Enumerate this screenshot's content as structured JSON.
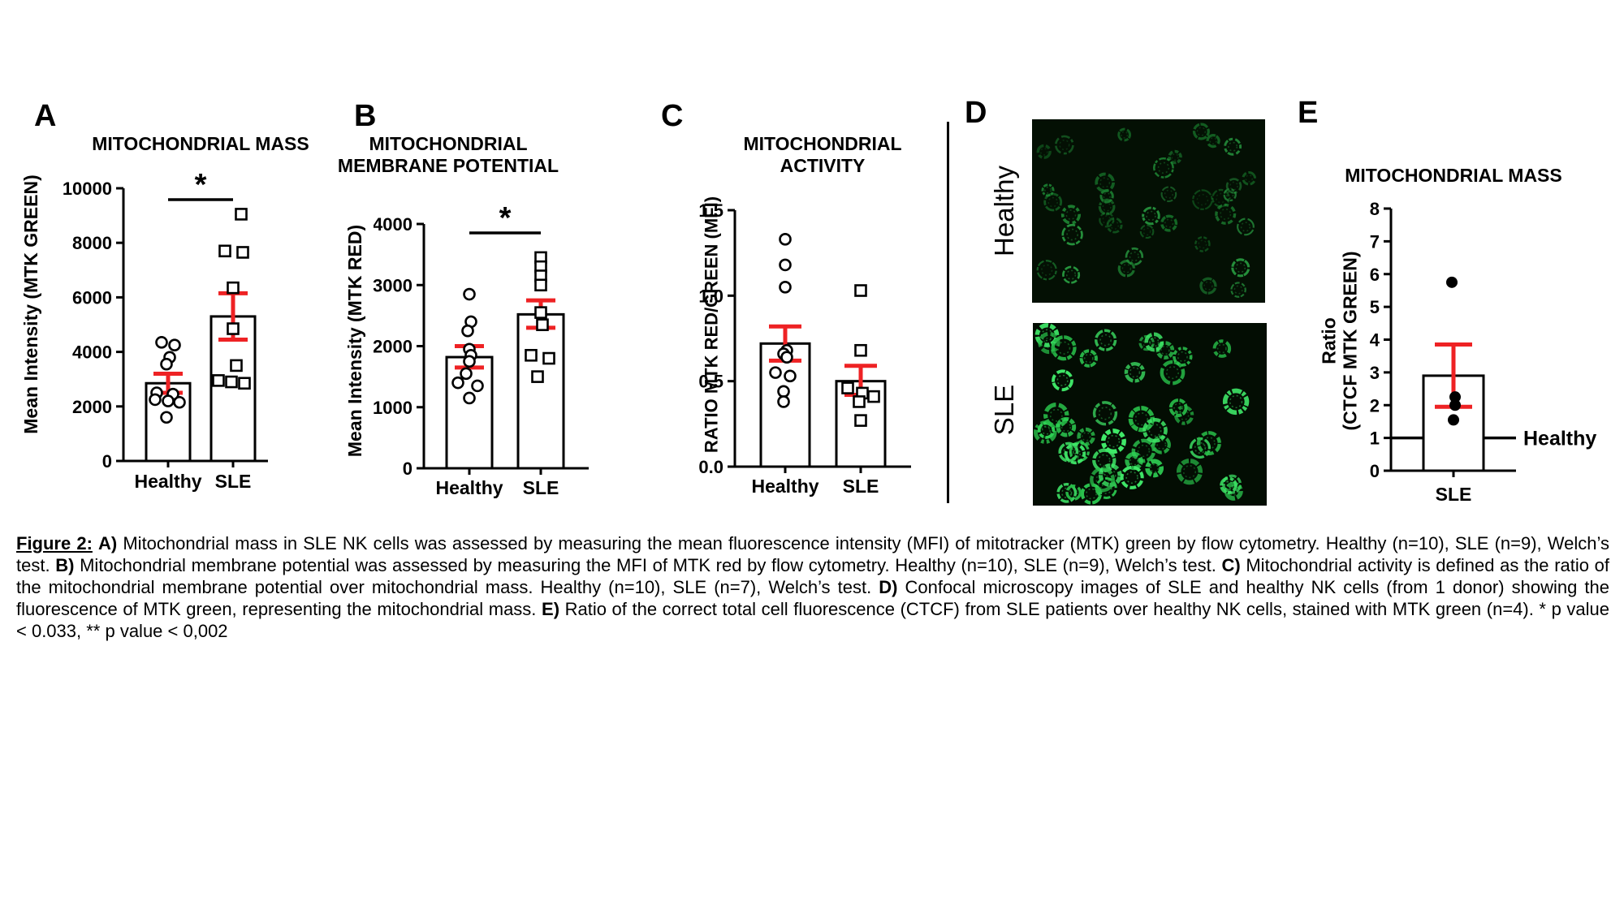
{
  "colors": {
    "error_bar_red": "#ee2224",
    "axis_ink": "#000000",
    "background": "#ffffff",
    "micro_green_dim": "#2aa344",
    "micro_green_bright": "#3fe868"
  },
  "chart_data": [
    {
      "id": "A",
      "panel_label": "A",
      "type": "bar",
      "title": "MITOCHONDRIAL MASS",
      "title_lines": [
        "MITOCHONDRIAL MASS"
      ],
      "ylabel": "Mean Intensity (MTK GREEN)",
      "xlabel": "",
      "categories": [
        "Healthy",
        "SLE"
      ],
      "ylim": [
        0,
        10000
      ],
      "yticks": [
        0,
        2000,
        4000,
        6000,
        8000,
        10000
      ],
      "ytick_labels": [
        "0",
        "2000",
        "4000",
        "6000",
        "8000",
        "10000"
      ],
      "significance": {
        "label": "*"
      },
      "series": [
        {
          "name": "Healthy",
          "marker": "open-circle",
          "mean": 2850,
          "sem_low": 2500,
          "sem_high": 3200,
          "points": [
            4350,
            4250,
            3800,
            3550,
            2500,
            2450,
            2250,
            2200,
            2150,
            1600
          ]
        },
        {
          "name": "SLE",
          "marker": "open-square",
          "mean": 5300,
          "sem_low": 4450,
          "sem_high": 6150,
          "points": [
            9050,
            7700,
            7650,
            6350,
            4850,
            3500,
            2950,
            2900,
            2850
          ]
        }
      ]
    },
    {
      "id": "B",
      "panel_label": "B",
      "type": "bar",
      "title": "MITOCHONDRIAL MEMBRANE POTENTIAL",
      "title_lines": [
        "MITOCHONDRIAL",
        "MEMBRANE POTENTIAL"
      ],
      "ylabel": "Mean Intensity (MTK RED)",
      "xlabel": "",
      "categories": [
        "Healthy",
        "SLE"
      ],
      "ylim": [
        0,
        4000
      ],
      "yticks": [
        0,
        1000,
        2000,
        3000,
        4000
      ],
      "ytick_labels": [
        "0",
        "1000",
        "2000",
        "3000",
        "4000"
      ],
      "significance": {
        "label": "*"
      },
      "series": [
        {
          "name": "Healthy",
          "marker": "open-circle",
          "mean": 1820,
          "sem_low": 1650,
          "sem_high": 2000,
          "points": [
            2850,
            2400,
            2250,
            1950,
            1850,
            1750,
            1550,
            1400,
            1350,
            1150
          ]
        },
        {
          "name": "SLE",
          "marker": "open-square",
          "mean": 2520,
          "sem_low": 2300,
          "sem_high": 2750,
          "points": [
            3450,
            3300,
            3150,
            3000,
            2550,
            2350,
            1850,
            1800,
            1500
          ]
        }
      ]
    },
    {
      "id": "C",
      "panel_label": "C",
      "type": "bar",
      "title": "MITOCHONDRIAL ACTIVITY",
      "title_lines": [
        "MITOCHONDRIAL",
        "ACTIVITY"
      ],
      "ylabel": "RATIO MTK RED/GREEN (MFI)",
      "xlabel": "",
      "categories": [
        "Healthy",
        "SLE"
      ],
      "ylim": [
        0,
        1.5
      ],
      "yticks": [
        0,
        0.5,
        1.0,
        1.5
      ],
      "ytick_labels": [
        "0.0",
        "0.5",
        "1.0",
        "1.5"
      ],
      "significance": null,
      "series": [
        {
          "name": "Healthy",
          "marker": "open-circle",
          "mean": 0.72,
          "sem_low": 0.62,
          "sem_high": 0.82,
          "points": [
            1.33,
            1.18,
            1.05,
            0.68,
            0.66,
            0.64,
            0.55,
            0.53,
            0.44,
            0.38
          ]
        },
        {
          "name": "SLE",
          "marker": "open-square",
          "mean": 0.5,
          "sem_low": 0.42,
          "sem_high": 0.59,
          "points": [
            1.03,
            0.68,
            0.46,
            0.43,
            0.41,
            0.38,
            0.27
          ]
        }
      ]
    },
    {
      "id": "E",
      "panel_label": "E",
      "type": "bar",
      "title": "MITOCHONDRIAL MASS",
      "title_lines": [
        "MITOCHONDRIAL MASS"
      ],
      "ylabel": "Ratio (CTCF MTK GREEN)",
      "ylabel_lines": [
        "Ratio",
        "(CTCF MTK GREEN)"
      ],
      "xlabel": "",
      "categories": [
        "SLE"
      ],
      "ylim": [
        0,
        8
      ],
      "yticks": [
        0,
        1,
        2,
        3,
        4,
        5,
        6,
        7,
        8
      ],
      "ytick_labels": [
        "0",
        "1",
        "2",
        "3",
        "4",
        "5",
        "6",
        "7",
        "8"
      ],
      "significance": null,
      "refline": {
        "value": 1,
        "label": "Healthy"
      },
      "series": [
        {
          "name": "SLE",
          "marker": "filled-circle",
          "mean": 2.9,
          "sem_low": 1.95,
          "sem_high": 3.85,
          "points": [
            5.75,
            2.25,
            2.0,
            1.55
          ]
        }
      ]
    }
  ],
  "panel_d": {
    "label": "D",
    "images": [
      {
        "name": "Healthy",
        "cells": 36,
        "background": "#041004",
        "palette": [
          "#1f8c36",
          "#2aa344",
          "#187a2c"
        ],
        "opacity": [
          0.45,
          0.9
        ],
        "size": 1.0,
        "stroke": 1.0
      },
      {
        "name": "SLE",
        "cells": 46,
        "background": "#030d03",
        "palette": [
          "#2fd455",
          "#3fe868",
          "#27b947"
        ],
        "opacity": [
          0.7,
          1.0
        ],
        "size": 1.12,
        "stroke": 1.5
      }
    ]
  },
  "caption": {
    "segments": [
      {
        "text": "Figure 2:",
        "bold": true,
        "underline": true
      },
      {
        "text": " ",
        "bold": false
      },
      {
        "text": "A)",
        "bold": true
      },
      {
        "text": " Mitochondrial mass in SLE NK cells was assessed by measuring the mean fluorescence intensity (MFI) of mitotracker (MTK)  green by flow cytometry. Healthy (n=10), SLE (n=9), Welch’s test. ",
        "bold": false
      },
      {
        "text": "B)",
        "bold": true
      },
      {
        "text": " Mitochondrial membrane potential was assessed by measuring the MFI of MTK red by flow cytometry. Healthy (n=10), SLE (n=9), Welch’s test.  ",
        "bold": false
      },
      {
        "text": "C)",
        "bold": true
      },
      {
        "text": " Mitochondrial activity is defined as the ratio of the mitochondrial membrane potential over mitochondrial mass. Healthy (n=10), SLE (n=7), Welch’s test. ",
        "bold": false
      },
      {
        "text": "D)",
        "bold": true
      },
      {
        "text": " Confocal microscopy images of SLE and healthy NK cells (from 1 donor) showing the fluorescence of MTK green, representing the mitochondrial mass. ",
        "bold": false
      },
      {
        "text": "E)",
        "bold": true
      },
      {
        "text": " Ratio of the correct total cell fluorescence (CTCF) from SLE patients over healthy NK cells, stained with MTK green (n=4). * p value < 0.033, ** p value < 0,002",
        "bold": false
      }
    ]
  }
}
